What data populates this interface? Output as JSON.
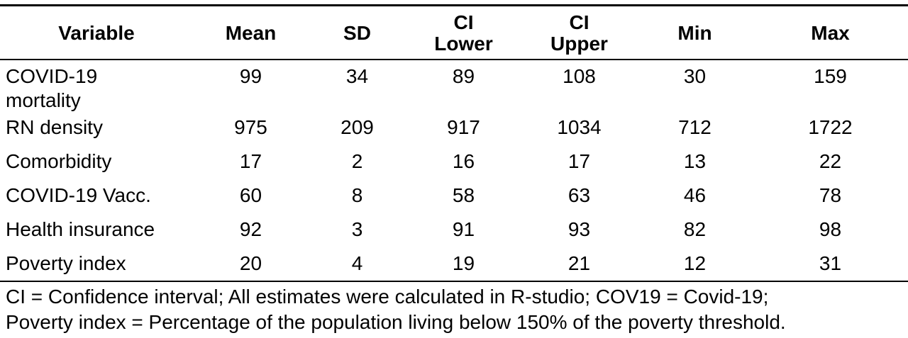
{
  "table": {
    "headers": [
      "Variable",
      "Mean",
      "SD",
      "CI\nLower",
      "CI\nUpper",
      "Min",
      "Max"
    ],
    "rows": [
      {
        "variable": "COVID-19\nmortality",
        "mean": "99",
        "sd": "34",
        "ci_lower": "89",
        "ci_upper": "108",
        "min": "30",
        "max": "159"
      },
      {
        "variable": "RN density",
        "mean": "975",
        "sd": "209",
        "ci_lower": "917",
        "ci_upper": "1034",
        "min": "712",
        "max": "1722"
      },
      {
        "variable": "Comorbidity",
        "mean": "17",
        "sd": "2",
        "ci_lower": "16",
        "ci_upper": "17",
        "min": "13",
        "max": "22"
      },
      {
        "variable": "COVID-19 Vacc.",
        "mean": "60",
        "sd": "8",
        "ci_lower": "58",
        "ci_upper": "63",
        "min": "46",
        "max": "78"
      },
      {
        "variable": "Health insurance",
        "mean": "92",
        "sd": "3",
        "ci_lower": "91",
        "ci_upper": "93",
        "min": "82",
        "max": "98"
      },
      {
        "variable": "Poverty index",
        "mean": "20",
        "sd": "4",
        "ci_lower": "19",
        "ci_upper": "21",
        "min": "12",
        "max": "31"
      }
    ]
  },
  "footnote": {
    "line1": "CI = Confidence interval; All estimates were calculated in R-studio; COV19 = Covid-19;",
    "line2": "Poverty index = Percentage of the population living below 150% of the poverty threshold."
  }
}
